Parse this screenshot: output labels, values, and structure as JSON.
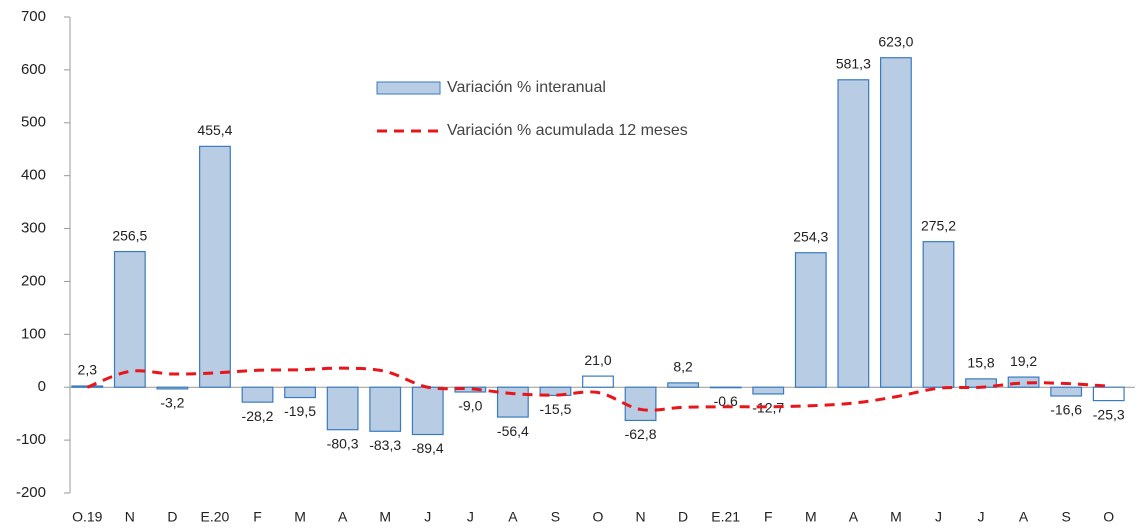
{
  "chart_data": {
    "type": "bar_line",
    "categories": [
      "O.19",
      "N",
      "D",
      "E.20",
      "F",
      "M",
      "A",
      "M",
      "J",
      "J",
      "A",
      "S",
      "O",
      "N",
      "D",
      "E.21",
      "F",
      "M",
      "A",
      "M",
      "J",
      "J",
      "A",
      "S",
      "O"
    ],
    "series": [
      {
        "name": "Variación % interanual",
        "type": "bar",
        "color": "#b8cce4",
        "stroke": "#3a7abf",
        "colors": [
          "#b8cce4",
          "#b8cce4",
          "#b8cce4",
          "#b8cce4",
          "#b8cce4",
          "#b8cce4",
          "#b8cce4",
          "#b8cce4",
          "#b8cce4",
          "#b8cce4",
          "#b8cce4",
          "#b8cce4",
          "#ffffff",
          "#b8cce4",
          "#b8cce4",
          "#b8cce4",
          "#b8cce4",
          "#b8cce4",
          "#b8cce4",
          "#b8cce4",
          "#b8cce4",
          "#b8cce4",
          "#b8cce4",
          "#b8cce4",
          "#ffffff"
        ],
        "values": [
          2.3,
          256.5,
          -3.2,
          455.4,
          -28.2,
          -19.5,
          -80.3,
          -83.3,
          -89.4,
          -9.0,
          -56.4,
          -15.5,
          21.0,
          -62.8,
          8.2,
          -0.6,
          -12.7,
          254.3,
          581.3,
          623.0,
          275.2,
          15.8,
          19.2,
          -16.6,
          -25.3
        ],
        "value_labels": [
          "2,3",
          "256,5",
          "-3,2",
          "455,4",
          "-28,2",
          "-19,5",
          "-80,3",
          "-83,3",
          "-89,4",
          "-9,0",
          "-56,4",
          "-15,5",
          "21,0",
          "-62,8",
          "8,2",
          "-0,6",
          "-12,7",
          "254,3",
          "581,3",
          "623,0",
          "275,2",
          "15,8",
          "19,2",
          "-16,6",
          "-25,3"
        ]
      },
      {
        "name": "Variación % acumulada 12 meses",
        "type": "line",
        "color": "#e8151b",
        "dashed": true,
        "values": [
          0,
          30,
          25,
          27,
          32,
          33,
          36,
          30,
          0,
          -3,
          -12,
          -15,
          -10,
          -42,
          -38,
          -37,
          -37,
          -35,
          -30,
          -18,
          -2,
          0,
          8,
          7,
          2
        ]
      }
    ],
    "ylim": [
      -200,
      700
    ],
    "yticks": [
      -200,
      -100,
      0,
      100,
      200,
      300,
      400,
      500,
      600,
      700
    ],
    "grid": false
  }
}
